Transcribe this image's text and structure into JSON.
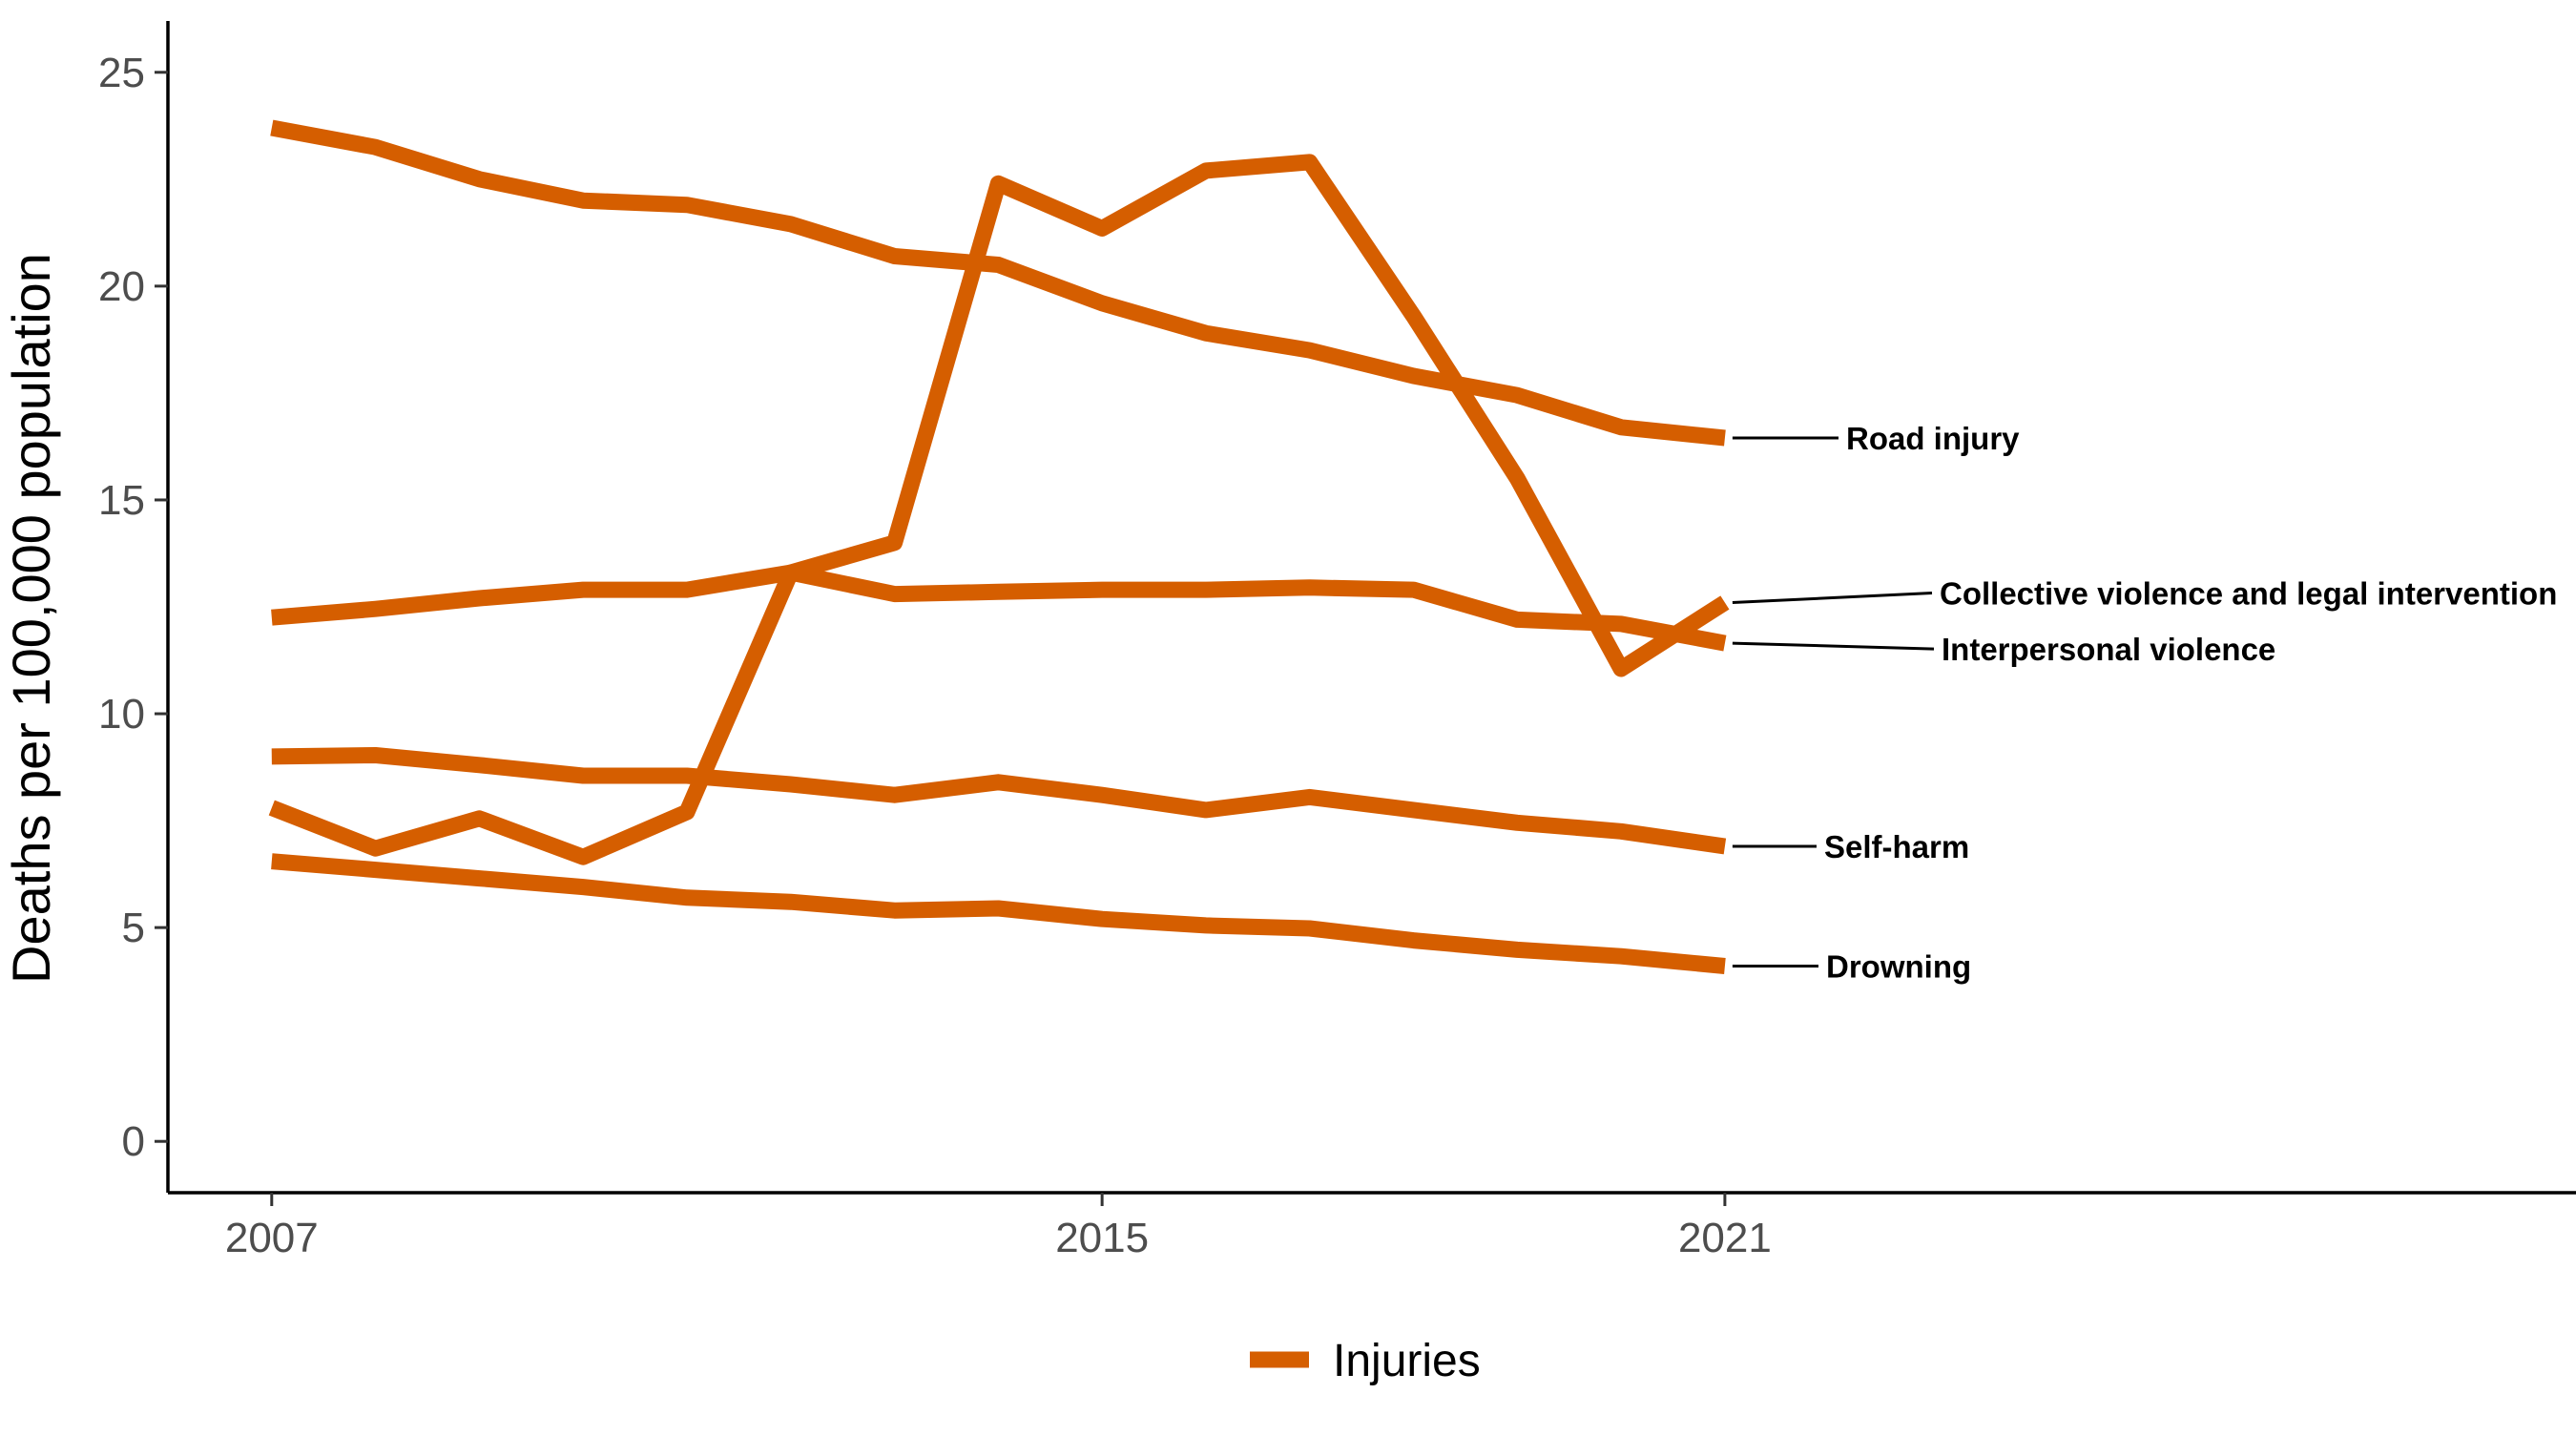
{
  "chart_data": {
    "type": "line",
    "ylabel": "Deaths per 100,000 population",
    "xlabel": "",
    "x_ticks": [
      2007,
      2015,
      2021
    ],
    "y_ticks": [
      0,
      5,
      10,
      15,
      20,
      25
    ],
    "xlim": [
      2006,
      2029.2
    ],
    "ylim": [
      -1.2,
      26.2
    ],
    "grid": false,
    "legend": {
      "position": "bottom",
      "entries": [
        "Injuries"
      ]
    },
    "line_color": "#D55E00",
    "x": [
      2007,
      2008,
      2009,
      2010,
      2011,
      2012,
      2013,
      2014,
      2015,
      2016,
      2017,
      2018,
      2019,
      2020,
      2021
    ],
    "series": [
      {
        "name": "Road injury",
        "values": [
          23.7,
          23.25,
          22.5,
          22.0,
          21.9,
          21.45,
          20.7,
          20.5,
          19.6,
          18.9,
          18.5,
          17.9,
          17.45,
          16.7,
          16.45
        ]
      },
      {
        "name": "Collective violence and legal intervention",
        "values": [
          7.8,
          6.85,
          7.55,
          6.65,
          7.7,
          13.3,
          14.0,
          22.4,
          21.35,
          22.7,
          22.9,
          19.3,
          15.5,
          11.05,
          12.6
        ]
      },
      {
        "name": "Interpersonal violence",
        "values": [
          12.25,
          12.45,
          12.7,
          12.9,
          12.9,
          13.3,
          12.8,
          12.85,
          12.9,
          12.9,
          12.95,
          12.9,
          12.2,
          12.1,
          11.65
        ]
      },
      {
        "name": "Self-harm",
        "values": [
          9.0,
          9.03,
          8.8,
          8.55,
          8.55,
          8.35,
          8.1,
          8.4,
          8.1,
          7.75,
          8.05,
          7.75,
          7.45,
          7.25,
          6.9
        ]
      },
      {
        "name": "Drowning",
        "values": [
          6.55,
          6.35,
          6.15,
          5.95,
          5.7,
          5.6,
          5.4,
          5.45,
          5.2,
          5.05,
          4.98,
          4.7,
          4.48,
          4.33,
          4.1
        ]
      }
    ]
  }
}
